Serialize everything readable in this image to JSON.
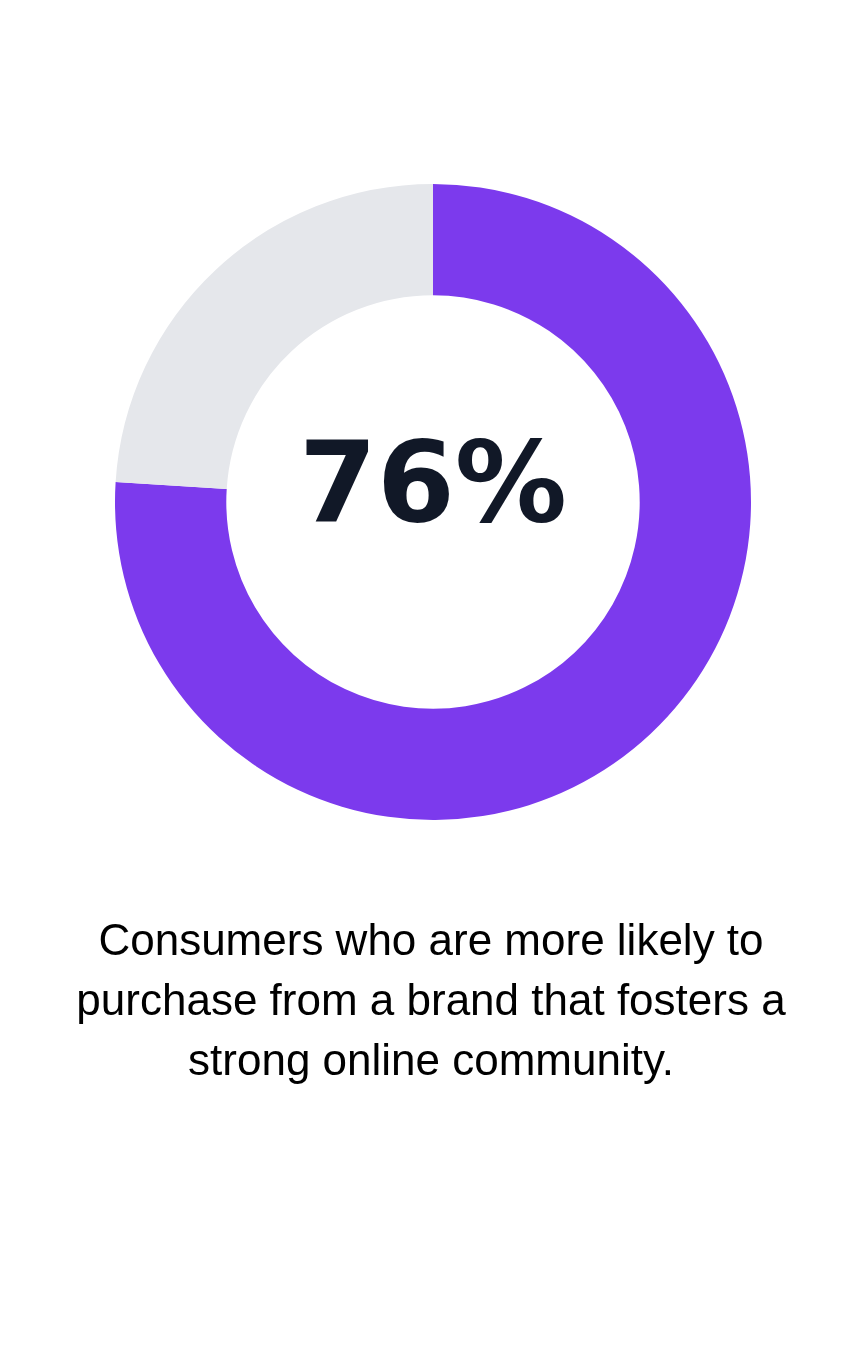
{
  "chart_data": {
    "type": "donut",
    "categories": [
      null,
      null
    ],
    "values": [
      76,
      24
    ],
    "colors": [
      "#7c3aed",
      "#e5e7eb"
    ],
    "value_labels": [
      "76%",
      null
    ],
    "legend": false,
    "title": "Consumers who are more likely to purchase from a brand that fosters a strong online community."
  }
}
